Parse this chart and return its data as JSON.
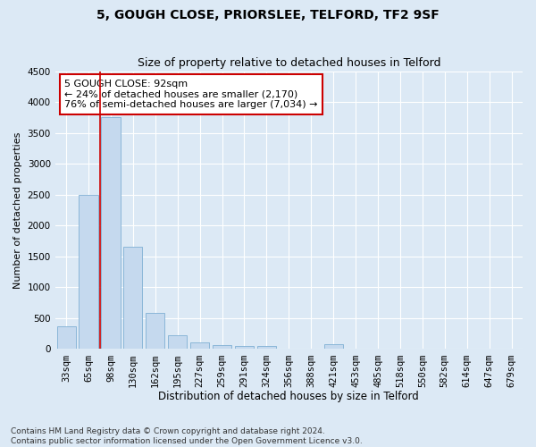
{
  "title1": "5, GOUGH CLOSE, PRIORSLEE, TELFORD, TF2 9SF",
  "title2": "Size of property relative to detached houses in Telford",
  "xlabel": "Distribution of detached houses by size in Telford",
  "ylabel": "Number of detached properties",
  "categories": [
    "33sqm",
    "65sqm",
    "98sqm",
    "130sqm",
    "162sqm",
    "195sqm",
    "227sqm",
    "259sqm",
    "291sqm",
    "324sqm",
    "356sqm",
    "388sqm",
    "421sqm",
    "453sqm",
    "485sqm",
    "518sqm",
    "550sqm",
    "582sqm",
    "614sqm",
    "647sqm",
    "679sqm"
  ],
  "values": [
    370,
    2500,
    3750,
    1650,
    590,
    225,
    110,
    65,
    50,
    50,
    0,
    0,
    75,
    0,
    0,
    0,
    0,
    0,
    0,
    0,
    0
  ],
  "bar_color": "#c5d9ee",
  "bar_edge_color": "#7fafd4",
  "vline_color": "#cc0000",
  "annotation_text": "5 GOUGH CLOSE: 92sqm\n← 24% of detached houses are smaller (2,170)\n76% of semi-detached houses are larger (7,034) →",
  "annotation_box_color": "#ffffff",
  "annotation_box_edge": "#cc0000",
  "ylim": [
    0,
    4500
  ],
  "yticks": [
    0,
    500,
    1000,
    1500,
    2000,
    2500,
    3000,
    3500,
    4000,
    4500
  ],
  "footnote": "Contains HM Land Registry data © Crown copyright and database right 2024.\nContains public sector information licensed under the Open Government Licence v3.0.",
  "background_color": "#dce9f5",
  "plot_bg_color": "#dce9f5",
  "grid_color": "#ffffff",
  "title1_fontsize": 10,
  "title2_fontsize": 9,
  "xlabel_fontsize": 8.5,
  "ylabel_fontsize": 8,
  "tick_fontsize": 7.5,
  "annotation_fontsize": 8,
  "footnote_fontsize": 6.5
}
